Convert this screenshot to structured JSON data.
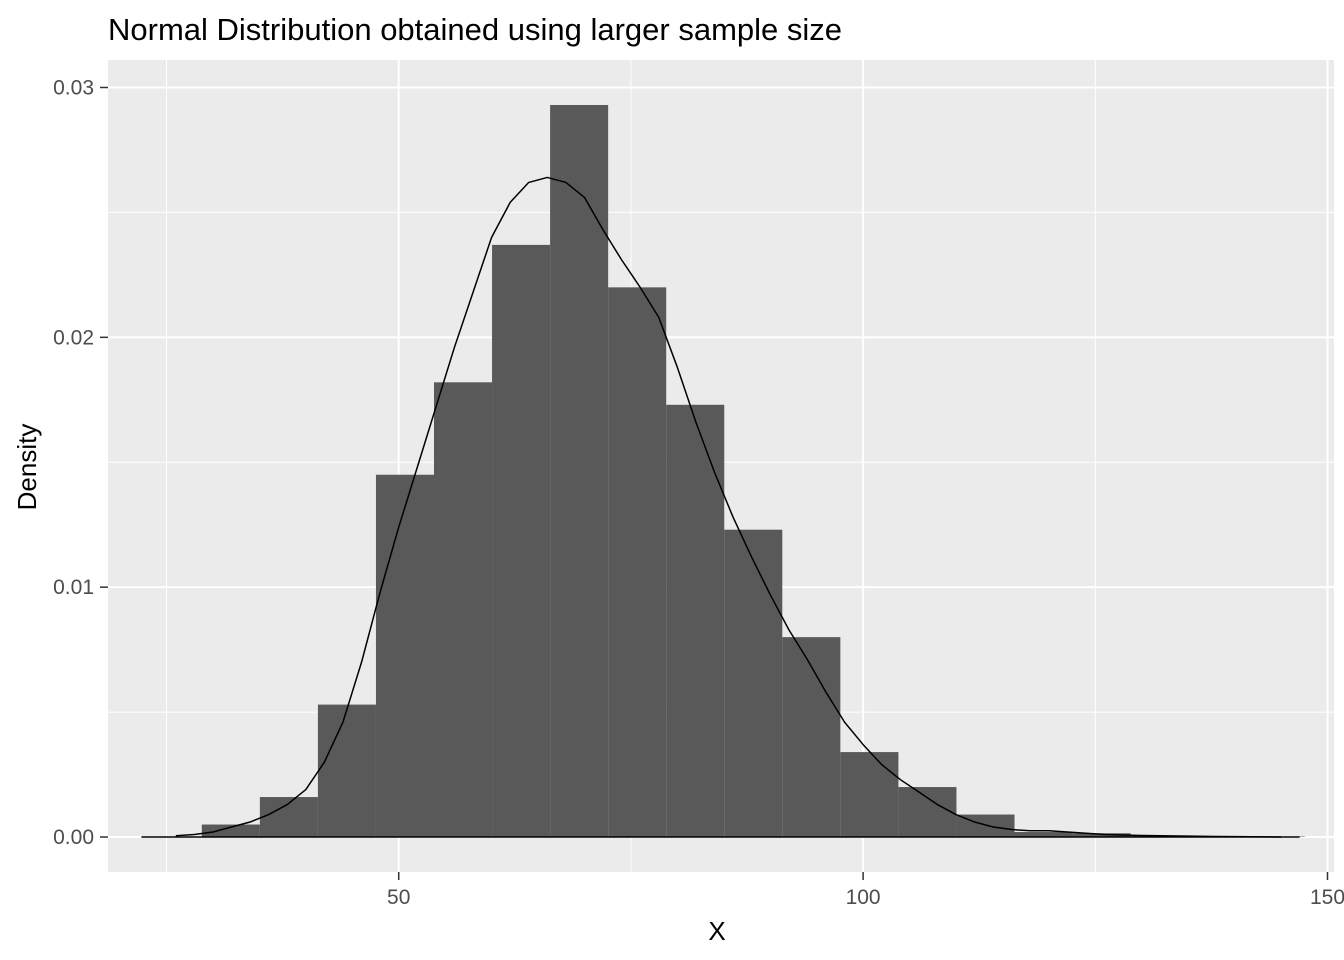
{
  "chart_data": {
    "type": "bar",
    "subtype": "histogram-with-density",
    "title": "Normal Distribution obtained using larger sample size",
    "xlabel": "X",
    "ylabel": "Density",
    "xlim": [
      18.7,
      150.7
    ],
    "ylim": [
      -0.0014,
      0.0311
    ],
    "x_ticks": [
      50,
      100,
      150
    ],
    "x_tick_labels": [
      "50",
      "100",
      "150"
    ],
    "y_ticks": [
      0.0,
      0.01,
      0.02,
      0.03
    ],
    "y_tick_labels": [
      "0.00",
      "0.01",
      "0.02",
      "0.03"
    ],
    "x_minor_ticks": [
      25,
      75,
      125
    ],
    "y_minor_ticks": [
      0.005,
      0.015,
      0.025
    ],
    "grid": true,
    "colors": {
      "panel_background": "#ebebeb",
      "grid_line": "#ffffff",
      "bar_fill": "#595959",
      "density_line": "#000000",
      "tick_label": "#4d4d4d",
      "tick_mark": "#333333"
    },
    "bins": {
      "width": 6.25,
      "left_edges": [
        28.8,
        35.05,
        41.3,
        47.55,
        53.8,
        60.05,
        66.3,
        72.55,
        78.8,
        85.05,
        91.3,
        97.55,
        103.8,
        110.05,
        116.3,
        122.55,
        128.8,
        135.05,
        141.3
      ],
      "values": [
        0.0005,
        0.0016,
        0.0053,
        0.0145,
        0.0182,
        0.0237,
        0.0293,
        0.022,
        0.0173,
        0.0123,
        0.008,
        0.0034,
        0.002,
        0.0009,
        0.0002,
        0.00015,
        5e-05,
        3e-05,
        2e-05
      ]
    },
    "density": {
      "x": [
        26,
        28,
        30,
        32,
        34,
        36,
        38,
        40,
        42,
        44,
        46,
        48,
        50,
        52,
        54,
        56,
        58,
        60,
        62,
        64,
        66,
        68,
        70,
        72,
        74,
        76,
        78,
        80,
        82,
        84,
        86,
        88,
        90,
        92,
        94,
        96,
        98,
        100,
        102,
        104,
        106,
        108,
        110,
        112,
        114,
        116,
        118,
        120,
        122,
        124,
        126,
        128,
        130,
        134,
        138,
        142,
        145
      ],
      "y": [
        5e-05,
        0.0001,
        0.0002,
        0.0004,
        0.0006,
        0.0009,
        0.0013,
        0.0019,
        0.003,
        0.0046,
        0.007,
        0.0098,
        0.0124,
        0.0148,
        0.0172,
        0.0196,
        0.0218,
        0.024,
        0.0254,
        0.0262,
        0.0264,
        0.0262,
        0.0256,
        0.0243,
        0.0231,
        0.022,
        0.0208,
        0.0188,
        0.0166,
        0.0146,
        0.0128,
        0.0112,
        0.0097,
        0.0083,
        0.0071,
        0.0058,
        0.0046,
        0.0037,
        0.0029,
        0.0023,
        0.0018,
        0.0013,
        0.0009,
        0.0006,
        0.0004,
        0.0003,
        0.00025,
        0.00025,
        0.0002,
        0.00015,
        0.0001,
        8e-05,
        6e-05,
        4e-05,
        2e-05,
        1e-05,
        0.0
      ]
    }
  }
}
